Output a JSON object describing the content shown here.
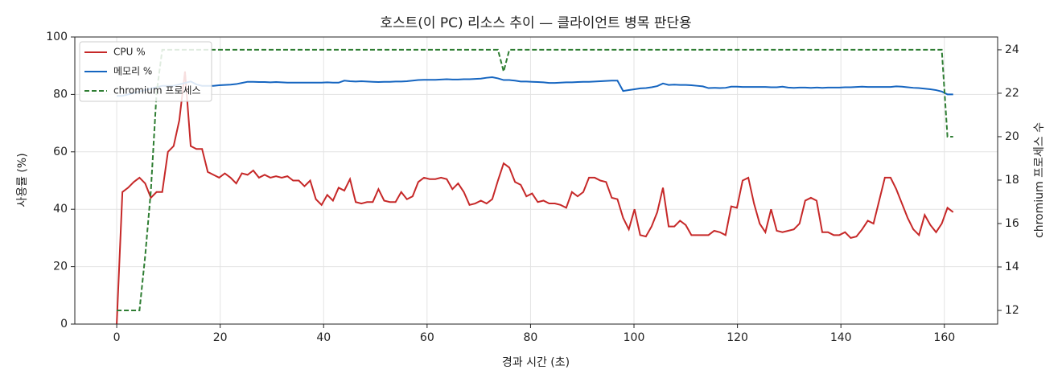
{
  "chart_data": {
    "type": "line",
    "title": "호스트(이 PC) 리소스 추이 — 클라이언트 병목 판단용",
    "x_label": "경과 시간 (초)",
    "y_label": "사용률 (%)",
    "y2_label": "chromium 프로세스 수",
    "x": [
      0,
      1.1,
      2.2,
      3.3,
      4.4,
      5.5,
      6.6,
      7.7,
      8.8,
      9.9,
      11,
      12.1,
      13.2,
      14.3,
      15.4,
      16.5,
      17.6,
      18.7,
      19.8,
      20.9,
      22,
      23.1,
      24.2,
      25.3,
      26.4,
      27.5,
      28.6,
      29.7,
      30.8,
      31.9,
      33,
      34.1,
      35.2,
      36.3,
      37.4,
      38.5,
      39.6,
      40.7,
      41.8,
      42.9,
      44,
      45.1,
      46.2,
      47.3,
      48.4,
      49.5,
      50.6,
      51.7,
      52.8,
      53.9,
      55,
      56.1,
      57.2,
      58.3,
      59.4,
      60.5,
      61.6,
      62.7,
      63.8,
      64.9,
      66,
      67.1,
      68.2,
      69.3,
      70.4,
      71.5,
      72.6,
      73.7,
      74.8,
      75.9,
      77,
      78.1,
      79.2,
      80.3,
      81.4,
      82.5,
      83.6,
      84.7,
      85.8,
      86.9,
      88,
      89.1,
      90.2,
      91.3,
      92.4,
      93.5,
      94.6,
      95.7,
      96.8,
      97.9,
      99,
      100.1,
      101.2,
      102.3,
      103.4,
      104.5,
      105.6,
      106.7,
      107.8,
      108.9,
      110,
      111.1,
      112.2,
      113.3,
      114.4,
      115.5,
      116.6,
      117.7,
      118.8,
      119.9,
      121,
      122.1,
      123.2,
      124.3,
      125.4,
      126.5,
      127.6,
      128.7,
      129.8,
      130.9,
      132,
      133.1,
      134.2,
      135.3,
      136.4,
      137.5,
      138.6,
      139.7,
      140.8,
      141.9,
      143,
      144.1,
      145.2,
      146.3,
      147.4,
      148.5,
      149.6,
      150.7,
      151.8,
      152.9,
      154,
      155.1,
      156.2,
      157.3,
      158.4,
      159.5,
      160.6,
      161.7
    ],
    "series": [
      {
        "name": "CPU %",
        "color": "#c62828",
        "linestyle": "solid",
        "values": [
          0,
          46,
          47.5,
          49.5,
          51,
          49,
          44,
          46,
          46,
          60,
          62,
          71,
          88,
          62,
          61,
          61,
          53,
          52,
          51,
          52.5,
          51,
          49,
          52.5,
          52,
          53.5,
          51,
          52,
          51,
          51.5,
          51,
          51.5,
          50,
          50,
          48,
          50,
          43.5,
          41.5,
          45,
          43,
          47.5,
          46.5,
          50.5,
          42.5,
          42,
          42.5,
          42.5,
          47,
          43,
          42.5,
          42.5,
          46,
          43.5,
          44.5,
          49.5,
          51,
          50.5,
          50.5,
          51,
          50.5,
          47,
          49,
          46,
          41.5,
          42,
          43,
          42,
          43.5,
          50,
          56,
          54.5,
          49.5,
          48.5,
          44.5,
          45.5,
          42.5,
          43,
          42,
          42,
          41.5,
          40.5,
          46,
          44.5,
          46,
          51,
          51,
          50,
          49.5,
          44,
          43.5,
          37,
          33,
          40,
          31,
          30.5,
          34,
          39,
          47.5,
          34,
          34,
          36,
          34.5,
          31,
          31,
          31,
          31,
          32.5,
          32,
          31,
          41,
          40.5,
          50,
          51,
          42,
          35,
          32,
          40,
          32.5,
          32,
          32.5,
          33,
          35,
          43,
          44,
          43,
          32,
          32,
          31,
          31,
          32,
          30,
          30.5,
          33,
          36,
          35,
          43,
          51,
          51,
          47,
          42,
          37,
          33,
          31,
          38,
          34.5,
          32,
          35,
          40.5,
          39
        ]
      },
      {
        "name": "메모리 %",
        "color": "#1565c0",
        "linestyle": "solid",
        "values": [
          79.5,
          79.5,
          80,
          80.5,
          81,
          81.5,
          82,
          82.5,
          83,
          83,
          83,
          83.5,
          84,
          84.5,
          83.5,
          83,
          83,
          83,
          83.2,
          83.3,
          83.4,
          83.6,
          84,
          84.4,
          84.4,
          84.3,
          84.3,
          84.2,
          84.3,
          84.2,
          84.1,
          84.1,
          84.1,
          84.1,
          84.1,
          84.1,
          84.1,
          84.2,
          84.1,
          84.1,
          84.8,
          84.6,
          84.5,
          84.6,
          84.5,
          84.4,
          84.3,
          84.4,
          84.4,
          84.5,
          84.5,
          84.6,
          84.8,
          85,
          85.1,
          85.1,
          85.1,
          85.2,
          85.3,
          85.2,
          85.2,
          85.3,
          85.3,
          85.4,
          85.5,
          85.8,
          86,
          85.6,
          85,
          85,
          84.8,
          84.5,
          84.5,
          84.4,
          84.3,
          84.2,
          84,
          84,
          84.1,
          84.2,
          84.2,
          84.3,
          84.4,
          84.4,
          84.5,
          84.6,
          84.7,
          84.8,
          84.8,
          81.2,
          81.5,
          81.8,
          82.1,
          82.2,
          82.5,
          82.9,
          83.8,
          83.3,
          83.4,
          83.3,
          83.3,
          83.2,
          83,
          82.8,
          82.2,
          82.3,
          82.2,
          82.3,
          82.7,
          82.7,
          82.6,
          82.6,
          82.6,
          82.6,
          82.6,
          82.5,
          82.5,
          82.7,
          82.4,
          82.3,
          82.4,
          82.4,
          82.3,
          82.4,
          82.3,
          82.4,
          82.4,
          82.4,
          82.5,
          82.5,
          82.6,
          82.7,
          82.6,
          82.6,
          82.6,
          82.6,
          82.6,
          82.8,
          82.7,
          82.5,
          82.3,
          82.2,
          82,
          81.8,
          81.5,
          81,
          80,
          80
        ]
      },
      {
        "name": "chromium 프로세스",
        "color": "#2e7d32",
        "linestyle": "dashed",
        "axis": "y2",
        "values": [
          12,
          12,
          12,
          12,
          12,
          14.5,
          17.5,
          22,
          24,
          24,
          24,
          24,
          24,
          24,
          24,
          24,
          24,
          24,
          24,
          24,
          24,
          24,
          24,
          24,
          24,
          24,
          24,
          24,
          24,
          24,
          24,
          24,
          24,
          24,
          24,
          24,
          24,
          24,
          24,
          24,
          24,
          24,
          24,
          24,
          24,
          24,
          24,
          24,
          24,
          24,
          24,
          24,
          24,
          24,
          24,
          24,
          24,
          24,
          24,
          24,
          24,
          24,
          24,
          24,
          24,
          24,
          24,
          24,
          23,
          24,
          24,
          24,
          24,
          24,
          24,
          24,
          24,
          24,
          24,
          24,
          24,
          24,
          24,
          24,
          24,
          24,
          24,
          24,
          24,
          24,
          24,
          24,
          24,
          24,
          24,
          24,
          24,
          24,
          24,
          24,
          24,
          24,
          24,
          24,
          24,
          24,
          24,
          24,
          24,
          24,
          24,
          24,
          24,
          24,
          24,
          24,
          24,
          24,
          24,
          24,
          24,
          24,
          24,
          24,
          24,
          24,
          24,
          24,
          24,
          24,
          24,
          24,
          24,
          24,
          24,
          24,
          24,
          24,
          24,
          24,
          24,
          24,
          24,
          24,
          24,
          24,
          20,
          20
        ]
      }
    ],
    "xlim": [
      -8.1,
      170.3
    ],
    "xticks": [
      0,
      20,
      40,
      60,
      80,
      100,
      120,
      140,
      160
    ],
    "ylim": [
      0,
      100
    ],
    "yticks": [
      0,
      20,
      40,
      60,
      80,
      100
    ],
    "y2lim": [
      11.37,
      24.59
    ],
    "y2ticks": [
      12,
      14,
      16,
      18,
      20,
      22,
      24
    ],
    "grid": true,
    "legend": "upper-left"
  }
}
